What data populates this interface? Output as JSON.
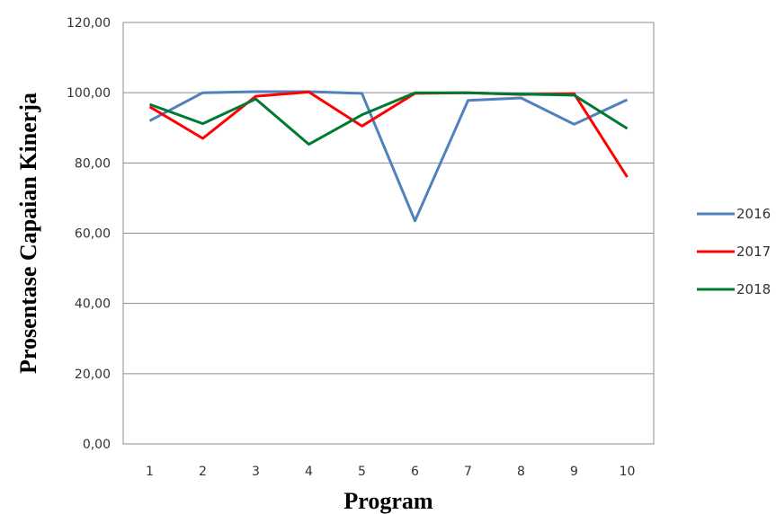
{
  "chart_data": {
    "type": "line",
    "title": "",
    "xlabel": "Program",
    "ylabel": "Prosentase Capaian Kinerja",
    "categories": [
      "1",
      "2",
      "3",
      "4",
      "5",
      "6",
      "7",
      "8",
      "9",
      "10"
    ],
    "ylim": [
      0,
      120
    ],
    "yticks": [
      "0,00",
      "20,00",
      "40,00",
      "60,00",
      "80,00",
      "100,00",
      "120,00"
    ],
    "grid": true,
    "legend_position": "right",
    "series": [
      {
        "name": "2016",
        "color": "#4F81BD",
        "values": [
          92,
          100,
          100.3,
          100.3,
          99.8,
          63.5,
          97.8,
          98.5,
          91,
          98
        ]
      },
      {
        "name": "2017",
        "color": "#FF0000",
        "values": [
          96,
          87,
          99,
          100.2,
          90.5,
          99.8,
          100,
          99.5,
          99.7,
          76
        ]
      },
      {
        "name": "2018",
        "color": "#007A33",
        "values": [
          96.7,
          91.2,
          98.2,
          85.3,
          93.7,
          100,
          100,
          99.6,
          99.3,
          89.8
        ]
      }
    ]
  }
}
